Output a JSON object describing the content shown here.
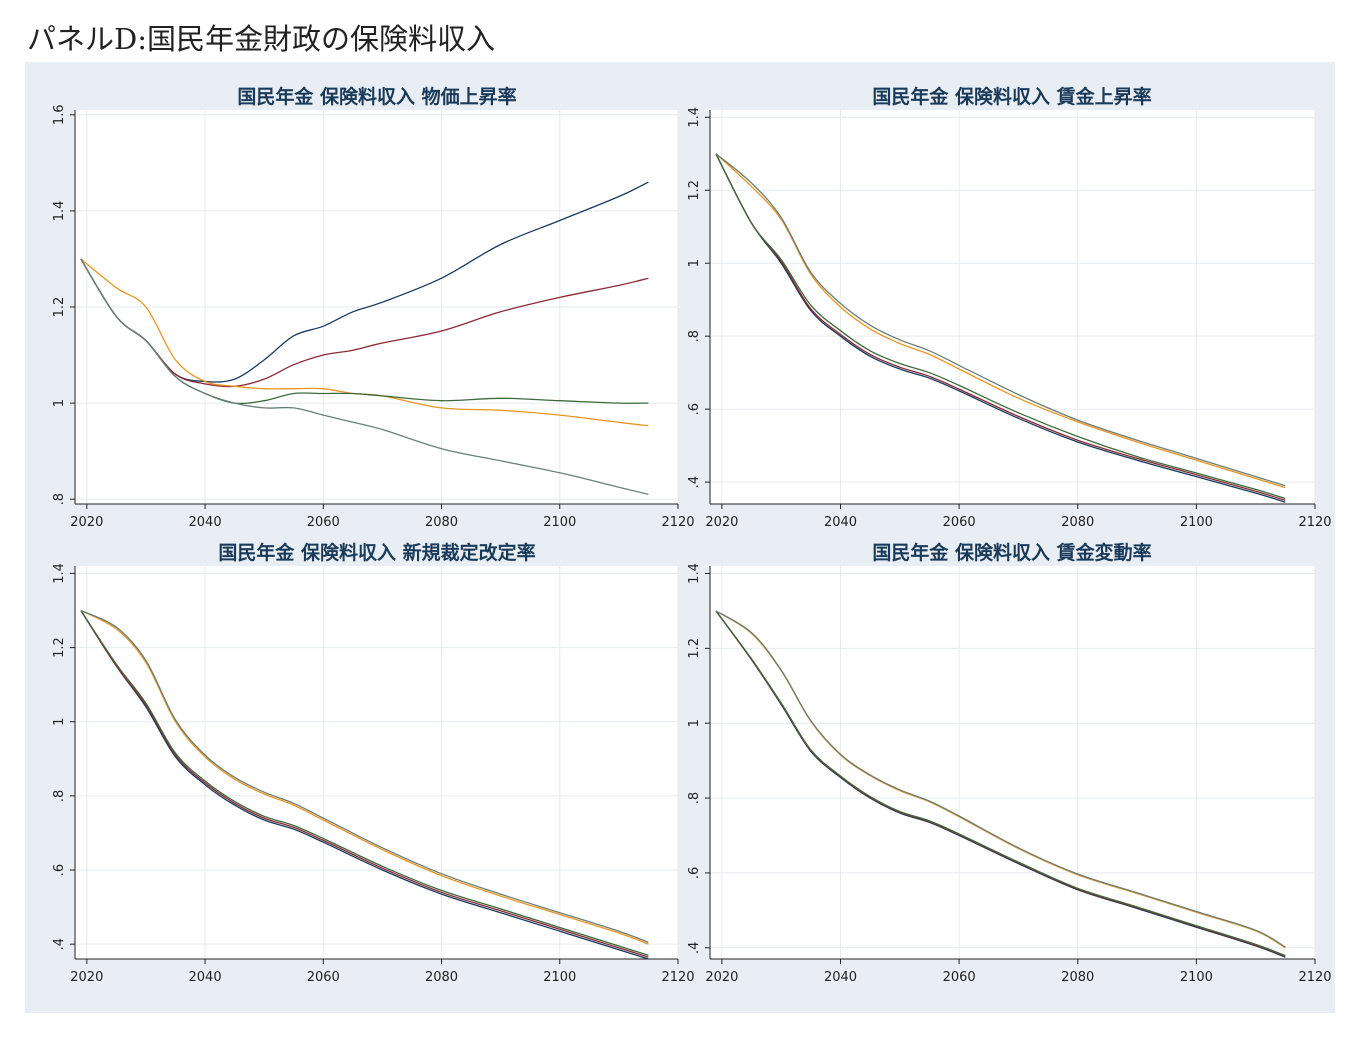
{
  "page_title": "パネルD:国民年金財政の保険料収入",
  "colors": {
    "panel_background": "#e8eef3",
    "plot_background": "#ffffff",
    "title_color": "#1a3a5a",
    "series": [
      "#1a3a5e",
      "#8b2a35",
      "#e8951f",
      "#3d6a3a",
      "#6a7f78"
    ]
  },
  "chart_data": [
    {
      "type": "line",
      "title": "国民年金 保険料収入 物価上昇率",
      "xlim": [
        2018,
        2120
      ],
      "ylim": [
        0.79,
        1.61
      ],
      "x_ticks": [
        2020,
        2040,
        2060,
        2080,
        2100,
        2120
      ],
      "x_tick_labels": [
        "2020",
        "2040",
        "2060",
        "2080",
        "2100",
        "2120"
      ],
      "y_ticks": [
        0.8,
        1.0,
        1.2,
        1.4,
        1.6
      ],
      "y_tick_labels": [
        ".8",
        "1",
        "1.2",
        "1.4",
        "1.6"
      ],
      "grid": true,
      "series": [
        {
          "x": [
            2019,
            2025,
            2030,
            2035,
            2040,
            2045,
            2050,
            2055,
            2060,
            2065,
            2070,
            2080,
            2090,
            2100,
            2110,
            2115
          ],
          "y": [
            1.3,
            1.18,
            1.13,
            1.06,
            1.045,
            1.05,
            1.09,
            1.14,
            1.16,
            1.19,
            1.21,
            1.26,
            1.33,
            1.38,
            1.43,
            1.46
          ]
        },
        {
          "x": [
            2019,
            2025,
            2030,
            2035,
            2040,
            2045,
            2050,
            2055,
            2060,
            2065,
            2070,
            2080,
            2090,
            2100,
            2110,
            2115
          ],
          "y": [
            1.3,
            1.18,
            1.13,
            1.06,
            1.04,
            1.035,
            1.05,
            1.08,
            1.1,
            1.11,
            1.125,
            1.15,
            1.19,
            1.22,
            1.245,
            1.26
          ]
        },
        {
          "x": [
            2019,
            2025,
            2030,
            2035,
            2040,
            2045,
            2050,
            2055,
            2060,
            2065,
            2070,
            2080,
            2090,
            2100,
            2110,
            2115
          ],
          "y": [
            1.3,
            1.24,
            1.2,
            1.09,
            1.045,
            1.035,
            1.03,
            1.03,
            1.03,
            1.02,
            1.015,
            0.99,
            0.985,
            0.975,
            0.96,
            0.953
          ]
        },
        {
          "x": [
            2019,
            2025,
            2030,
            2035,
            2040,
            2045,
            2050,
            2055,
            2060,
            2065,
            2070,
            2080,
            2090,
            2100,
            2110,
            2115
          ],
          "y": [
            1.3,
            1.18,
            1.13,
            1.055,
            1.02,
            1.0,
            1.005,
            1.02,
            1.02,
            1.02,
            1.015,
            1.005,
            1.01,
            1.005,
            1.0,
            1.0
          ]
        },
        {
          "x": [
            2019,
            2025,
            2030,
            2035,
            2040,
            2045,
            2050,
            2055,
            2060,
            2065,
            2070,
            2080,
            2090,
            2100,
            2110,
            2115
          ],
          "y": [
            1.3,
            1.18,
            1.13,
            1.055,
            1.02,
            1.0,
            0.99,
            0.99,
            0.975,
            0.96,
            0.945,
            0.905,
            0.88,
            0.855,
            0.825,
            0.81
          ]
        }
      ]
    },
    {
      "type": "line",
      "title": "国民年金 保険料収入 賃金上昇率",
      "xlim": [
        2018,
        2120
      ],
      "ylim": [
        0.34,
        1.42
      ],
      "x_ticks": [
        2020,
        2040,
        2060,
        2080,
        2100,
        2120
      ],
      "x_tick_labels": [
        "2020",
        "2040",
        "2060",
        "2080",
        "2100",
        "2120"
      ],
      "y_ticks": [
        0.4,
        0.6,
        0.8,
        1.0,
        1.2,
        1.4
      ],
      "y_tick_labels": [
        ".4",
        ".6",
        ".8",
        "1",
        "1.2",
        "1.4"
      ],
      "grid": true,
      "series": [
        {
          "x": [
            2019,
            2025,
            2030,
            2035,
            2040,
            2045,
            2050,
            2055,
            2060,
            2070,
            2080,
            2090,
            2100,
            2110,
            2115
          ],
          "y": [
            1.3,
            1.11,
            1.0,
            0.87,
            0.8,
            0.745,
            0.71,
            0.685,
            0.65,
            0.575,
            0.51,
            0.46,
            0.415,
            0.37,
            0.345
          ]
        },
        {
          "x": [
            2019,
            2025,
            2030,
            2035,
            2040,
            2045,
            2050,
            2055,
            2060,
            2070,
            2080,
            2090,
            2100,
            2110,
            2115
          ],
          "y": [
            1.3,
            1.11,
            1.005,
            0.875,
            0.805,
            0.75,
            0.715,
            0.69,
            0.655,
            0.58,
            0.515,
            0.465,
            0.42,
            0.375,
            0.35
          ]
        },
        {
          "x": [
            2019,
            2025,
            2030,
            2035,
            2040,
            2045,
            2050,
            2055,
            2060,
            2070,
            2080,
            2090,
            2100,
            2110,
            2115
          ],
          "y": [
            1.3,
            1.21,
            1.12,
            0.97,
            0.88,
            0.82,
            0.78,
            0.75,
            0.71,
            0.63,
            0.565,
            0.51,
            0.46,
            0.41,
            0.385
          ]
        },
        {
          "x": [
            2019,
            2025,
            2030,
            2035,
            2040,
            2045,
            2050,
            2055,
            2060,
            2070,
            2080,
            2090,
            2100,
            2110,
            2115
          ],
          "y": [
            1.3,
            1.11,
            1.01,
            0.885,
            0.815,
            0.76,
            0.725,
            0.7,
            0.665,
            0.59,
            0.525,
            0.47,
            0.425,
            0.38,
            0.355
          ]
        },
        {
          "x": [
            2019,
            2025,
            2030,
            2035,
            2040,
            2045,
            2050,
            2055,
            2060,
            2070,
            2080,
            2090,
            2100,
            2110,
            2115
          ],
          "y": [
            1.3,
            1.22,
            1.125,
            0.975,
            0.89,
            0.83,
            0.79,
            0.76,
            0.72,
            0.64,
            0.57,
            0.515,
            0.465,
            0.415,
            0.39
          ]
        }
      ]
    },
    {
      "type": "line",
      "title": "国民年金 保険料収入 新規裁定改定率",
      "xlim": [
        2018,
        2120
      ],
      "ylim": [
        0.36,
        1.42
      ],
      "x_ticks": [
        2020,
        2040,
        2060,
        2080,
        2100,
        2120
      ],
      "x_tick_labels": [
        "2020",
        "2040",
        "2060",
        "2080",
        "2100",
        "2120"
      ],
      "y_ticks": [
        0.4,
        0.6,
        0.8,
        1.0,
        1.2,
        1.4
      ],
      "y_tick_labels": [
        ".4",
        ".6",
        ".8",
        "1",
        "1.2",
        "1.4"
      ],
      "grid": true,
      "series": [
        {
          "x": [
            2019,
            2025,
            2030,
            2035,
            2040,
            2045,
            2050,
            2055,
            2060,
            2070,
            2080,
            2090,
            2100,
            2110,
            2115
          ],
          "y": [
            1.3,
            1.15,
            1.04,
            0.905,
            0.83,
            0.775,
            0.735,
            0.71,
            0.675,
            0.6,
            0.535,
            0.485,
            0.435,
            0.385,
            0.36
          ]
        },
        {
          "x": [
            2019,
            2025,
            2030,
            2035,
            2040,
            2045,
            2050,
            2055,
            2060,
            2070,
            2080,
            2090,
            2100,
            2110,
            2115
          ],
          "y": [
            1.3,
            1.15,
            1.045,
            0.91,
            0.835,
            0.78,
            0.74,
            0.715,
            0.68,
            0.605,
            0.54,
            0.49,
            0.44,
            0.39,
            0.365
          ]
        },
        {
          "x": [
            2019,
            2025,
            2030,
            2035,
            2040,
            2045,
            2050,
            2055,
            2060,
            2070,
            2080,
            2090,
            2100,
            2110,
            2115
          ],
          "y": [
            1.3,
            1.25,
            1.16,
            1.0,
            0.905,
            0.845,
            0.805,
            0.775,
            0.735,
            0.655,
            0.585,
            0.53,
            0.48,
            0.43,
            0.4
          ]
        },
        {
          "x": [
            2019,
            2025,
            2030,
            2035,
            2040,
            2045,
            2050,
            2055,
            2060,
            2070,
            2080,
            2090,
            2100,
            2110,
            2115
          ],
          "y": [
            1.3,
            1.155,
            1.05,
            0.915,
            0.84,
            0.785,
            0.745,
            0.72,
            0.685,
            0.61,
            0.545,
            0.495,
            0.445,
            0.395,
            0.37
          ]
        },
        {
          "x": [
            2019,
            2025,
            2030,
            2035,
            2040,
            2045,
            2050,
            2055,
            2060,
            2070,
            2080,
            2090,
            2100,
            2110,
            2115
          ],
          "y": [
            1.3,
            1.255,
            1.165,
            1.005,
            0.91,
            0.85,
            0.81,
            0.78,
            0.74,
            0.66,
            0.59,
            0.535,
            0.485,
            0.435,
            0.405
          ]
        }
      ]
    },
    {
      "type": "line",
      "title": "国民年金 保険料収入 賃金変動率",
      "xlim": [
        2018,
        2120
      ],
      "ylim": [
        0.37,
        1.42
      ],
      "x_ticks": [
        2020,
        2040,
        2060,
        2080,
        2100,
        2120
      ],
      "x_tick_labels": [
        "2020",
        "2040",
        "2060",
        "2080",
        "2100",
        "2120"
      ],
      "y_ticks": [
        0.4,
        0.6,
        0.8,
        1.0,
        1.2,
        1.4
      ],
      "y_tick_labels": [
        ".4",
        ".6",
        ".8",
        "1",
        "1.2",
        "1.4"
      ],
      "grid": true,
      "series": [
        {
          "x": [
            2019,
            2025,
            2030,
            2035,
            2040,
            2045,
            2050,
            2055,
            2060,
            2070,
            2080,
            2090,
            2100,
            2110,
            2115
          ],
          "y": [
            1.3,
            1.17,
            1.05,
            0.925,
            0.855,
            0.8,
            0.76,
            0.735,
            0.7,
            0.625,
            0.555,
            0.505,
            0.455,
            0.405,
            0.375
          ]
        },
        {
          "x": [
            2019,
            2025,
            2030,
            2035,
            2040,
            2045,
            2050,
            2055,
            2060,
            2070,
            2080,
            2090,
            2100,
            2110,
            2115
          ],
          "y": [
            1.3,
            1.17,
            1.052,
            0.927,
            0.857,
            0.802,
            0.762,
            0.737,
            0.702,
            0.627,
            0.557,
            0.507,
            0.457,
            0.407,
            0.377
          ]
        },
        {
          "x": [
            2019,
            2025,
            2030,
            2035,
            2040,
            2045,
            2050,
            2055,
            2060,
            2070,
            2080,
            2090,
            2100,
            2110,
            2115
          ],
          "y": [
            1.3,
            1.24,
            1.14,
            1.005,
            0.915,
            0.86,
            0.82,
            0.79,
            0.75,
            0.665,
            0.595,
            0.545,
            0.495,
            0.445,
            0.4
          ]
        },
        {
          "x": [
            2019,
            2025,
            2030,
            2035,
            2040,
            2045,
            2050,
            2055,
            2060,
            2070,
            2080,
            2090,
            2100,
            2110,
            2115
          ],
          "y": [
            1.3,
            1.172,
            1.054,
            0.929,
            0.859,
            0.804,
            0.764,
            0.739,
            0.704,
            0.629,
            0.559,
            0.509,
            0.459,
            0.409,
            0.379
          ]
        },
        {
          "x": [
            2019,
            2025,
            2030,
            2035,
            2040,
            2045,
            2050,
            2055,
            2060,
            2070,
            2080,
            2090,
            2100,
            2110,
            2115
          ],
          "y": [
            1.3,
            1.242,
            1.142,
            1.007,
            0.917,
            0.862,
            0.822,
            0.792,
            0.752,
            0.667,
            0.597,
            0.547,
            0.497,
            0.447,
            0.402
          ]
        }
      ]
    }
  ]
}
